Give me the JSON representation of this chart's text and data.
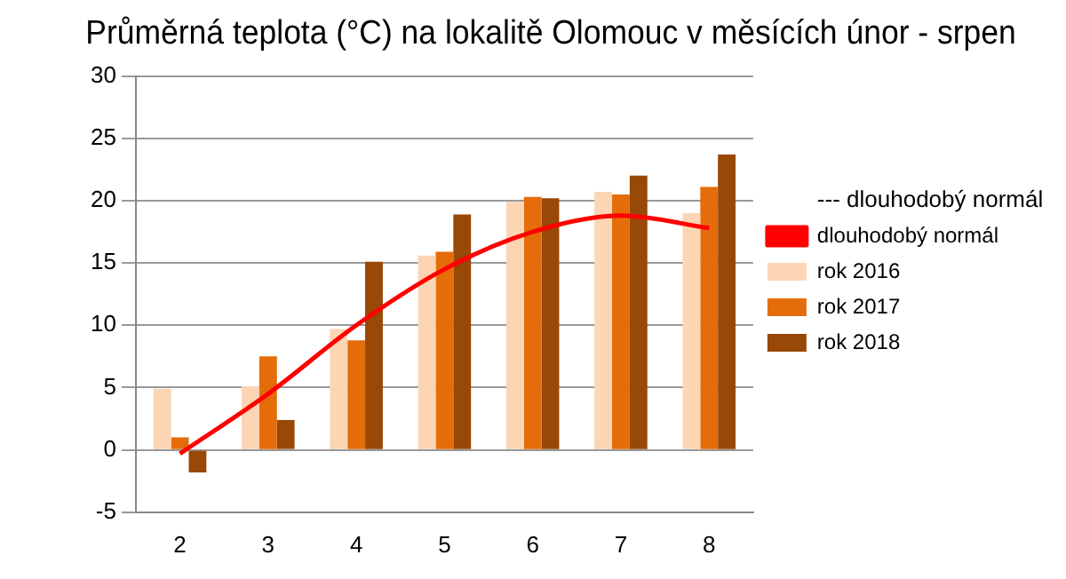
{
  "chart_data": {
    "type": "bar",
    "title": "Průměrná teplota (°C) na lokalitě Olomouc v měsících únor - srpen",
    "categories": [
      "2",
      "3",
      "4",
      "5",
      "6",
      "7",
      "8"
    ],
    "series": [
      {
        "name": "dlouhodobý normál",
        "type": "line",
        "color": "#ff0000",
        "values": [
          -0.3,
          4.5,
          10,
          14.5,
          17.5,
          18.8,
          17.8
        ],
        "marker": "none"
      },
      {
        "name": "rok 2016",
        "color": "#fcd5b5",
        "values": [
          4.9,
          5.1,
          9.7,
          15.6,
          19.9,
          20.7,
          19.0
        ]
      },
      {
        "name": "rok 2017",
        "color": "#e46c0a",
        "values": [
          1.0,
          7.5,
          8.8,
          15.9,
          20.3,
          20.5,
          21.1
        ]
      },
      {
        "name": "rok 2018",
        "color": "#984807",
        "values": [
          -1.8,
          2.4,
          15.1,
          18.9,
          20.2,
          22.0,
          23.7
        ]
      }
    ],
    "ylim": [
      -5,
      30
    ],
    "yticks": [
      -5,
      0,
      5,
      10,
      15,
      20,
      25,
      30
    ],
    "grid": "y",
    "legend": "right",
    "annotations": [
      "--- dlouhodobý normál"
    ]
  }
}
